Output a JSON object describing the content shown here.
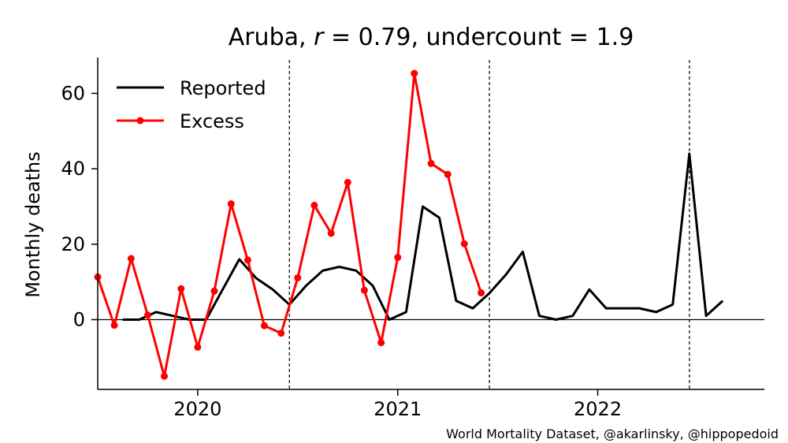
{
  "chart_data": {
    "type": "line",
    "title": "Aruba, r = 0.79, undercount = 1.9",
    "title_parts": {
      "country": "Aruba",
      "r_label": "r",
      "r_value": "0.79",
      "undercount_label": "undercount",
      "undercount_value": "1.9"
    },
    "ylabel": "Monthly deaths",
    "xlabel": "",
    "xlim": [
      2019.5,
      2022.833
    ],
    "ylim": [
      -18.5,
      69.5
    ],
    "yticks": [
      0,
      20,
      40,
      60
    ],
    "xticks": [
      {
        "value": 2020.0,
        "label": "2020"
      },
      {
        "value": 2021.0,
        "label": "2021"
      },
      {
        "value": 2022.0,
        "label": "2022"
      }
    ],
    "vlines": [
      2020.4583,
      2021.4583,
      2022.4583
    ],
    "hline": 0,
    "legend_position": "top-left",
    "series": [
      {
        "name": "Reported",
        "color": "#000000",
        "marker": false,
        "points": [
          [
            2019.625,
            0
          ],
          [
            2019.708,
            0
          ],
          [
            2019.792,
            2
          ],
          [
            2019.875,
            1
          ],
          [
            2019.958,
            0
          ],
          [
            2020.042,
            0
          ],
          [
            2020.125,
            8
          ],
          [
            2020.208,
            16
          ],
          [
            2020.292,
            11
          ],
          [
            2020.375,
            8
          ],
          [
            2020.458,
            4
          ],
          [
            2020.542,
            9
          ],
          [
            2020.625,
            13
          ],
          [
            2020.708,
            14
          ],
          [
            2020.792,
            13
          ],
          [
            2020.875,
            9
          ],
          [
            2020.958,
            0
          ],
          [
            2021.042,
            2
          ],
          [
            2021.125,
            30
          ],
          [
            2021.208,
            27
          ],
          [
            2021.292,
            5
          ],
          [
            2021.375,
            3
          ],
          [
            2021.458,
            7
          ],
          [
            2021.542,
            12
          ],
          [
            2021.625,
            18
          ],
          [
            2021.708,
            1
          ],
          [
            2021.792,
            0
          ],
          [
            2021.875,
            1
          ],
          [
            2021.958,
            8
          ],
          [
            2022.042,
            3
          ],
          [
            2022.125,
            3
          ],
          [
            2022.208,
            3
          ],
          [
            2022.292,
            2
          ],
          [
            2022.375,
            4
          ],
          [
            2022.458,
            44
          ],
          [
            2022.542,
            1
          ],
          [
            2022.625,
            5
          ]
        ]
      },
      {
        "name": "Excess",
        "color": "#ff0000",
        "marker": true,
        "points": [
          [
            2019.5,
            11.3
          ],
          [
            2019.583,
            -1.5
          ],
          [
            2019.667,
            16.2
          ],
          [
            2019.75,
            1.2
          ],
          [
            2019.833,
            -15
          ],
          [
            2019.917,
            8.2
          ],
          [
            2020.0,
            -7.3
          ],
          [
            2020.083,
            7.6
          ],
          [
            2020.167,
            30.7
          ],
          [
            2020.25,
            15.8
          ],
          [
            2020.333,
            -1.6
          ],
          [
            2020.417,
            -3.6
          ],
          [
            2020.5,
            11.1
          ],
          [
            2020.583,
            30.3
          ],
          [
            2020.667,
            22.9
          ],
          [
            2020.75,
            36.4
          ],
          [
            2020.833,
            7.8
          ],
          [
            2020.917,
            -6.1
          ],
          [
            2021.0,
            16.5
          ],
          [
            2021.083,
            65.3
          ],
          [
            2021.167,
            41.4
          ],
          [
            2021.25,
            38.5
          ],
          [
            2021.333,
            20.1
          ],
          [
            2021.417,
            7.1
          ]
        ]
      }
    ],
    "annotation": "World Mortality Dataset, @akarlinsky, @hippopedoid"
  }
}
